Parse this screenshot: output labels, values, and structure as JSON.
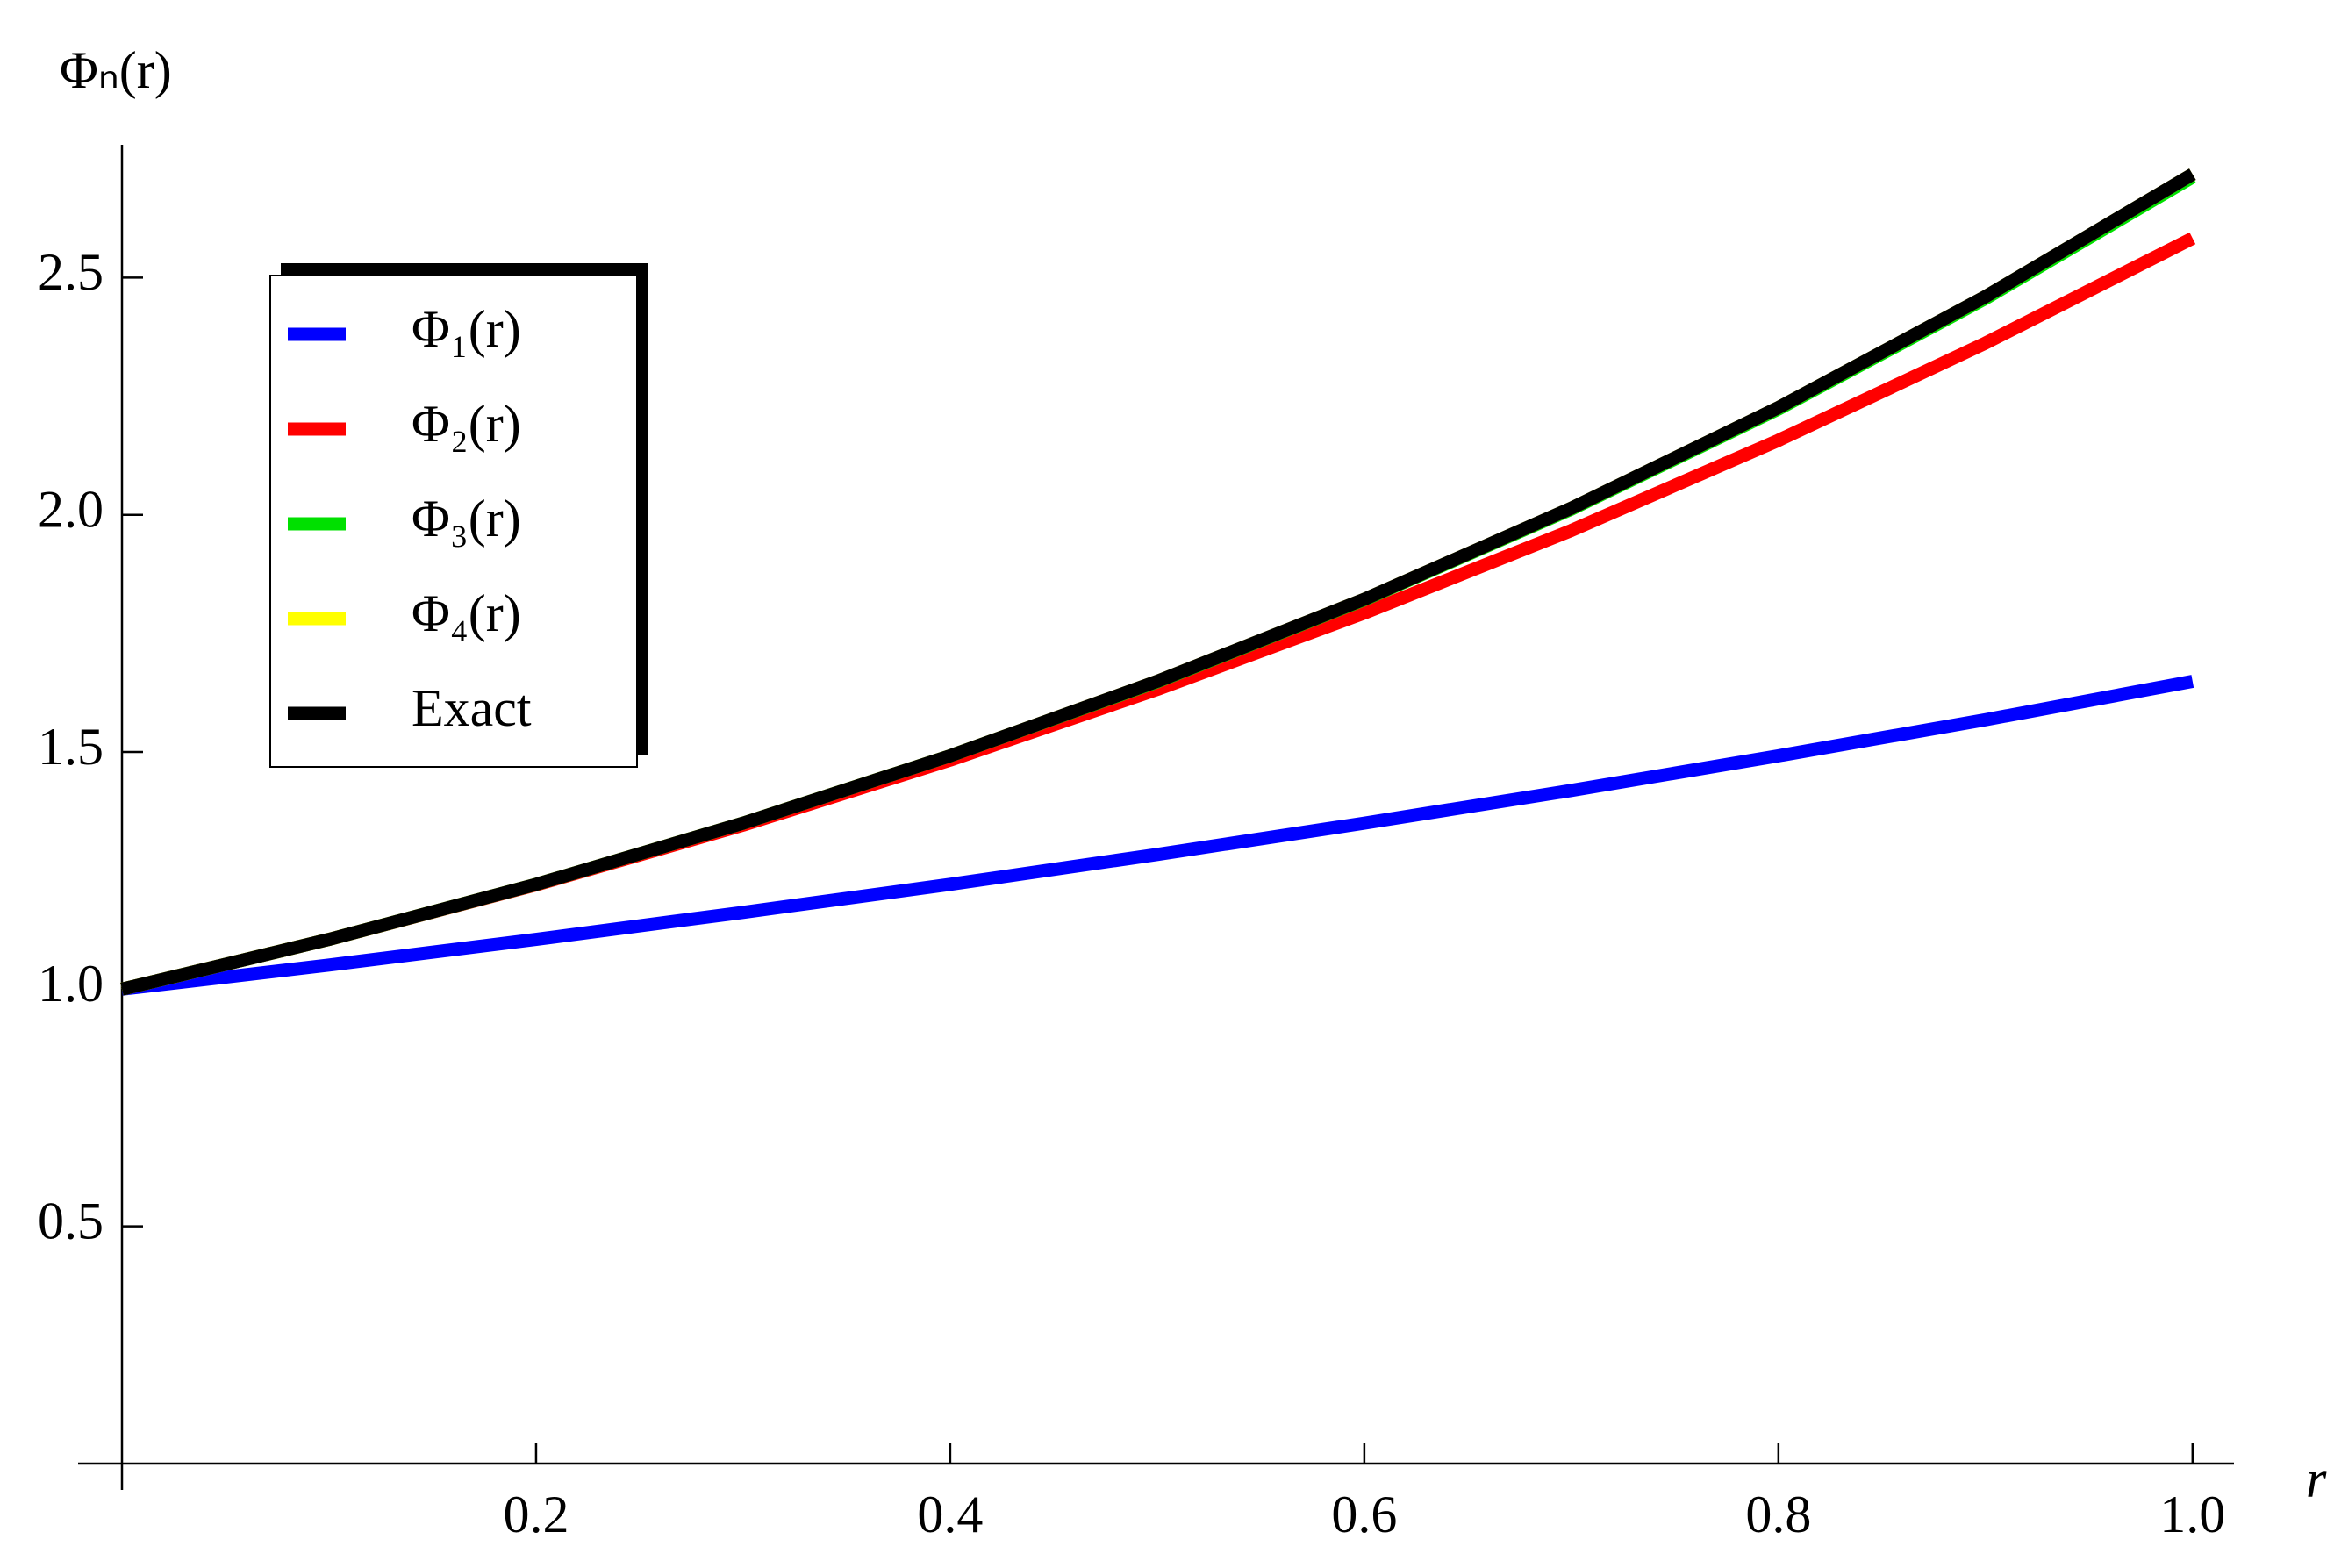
{
  "chart_data": {
    "type": "line",
    "y_label": "Φₙ(r)",
    "x_label": "r",
    "x": [
      0,
      0.1,
      0.2,
      0.3,
      0.4,
      0.5,
      0.6,
      0.7,
      0.8,
      0.9,
      1.0
    ],
    "series": [
      {
        "name": "Φ₁(r)",
        "color": "#0000ff",
        "values": [
          1,
          1.051,
          1.105,
          1.162,
          1.221,
          1.284,
          1.35,
          1.419,
          1.492,
          1.568,
          1.649
        ]
      },
      {
        "name": "Φ₂(r)",
        "color": "#ff0000",
        "values": [
          1,
          1.105,
          1.22,
          1.346,
          1.483,
          1.632,
          1.793,
          1.967,
          2.157,
          2.362,
          2.583
        ]
      },
      {
        "name": "Φ₃(r)",
        "color": "#00e000",
        "values": [
          1,
          1.105,
          1.221,
          1.35,
          1.492,
          1.648,
          1.821,
          2.012,
          2.223,
          2.456,
          2.712
        ]
      },
      {
        "name": "Φ₄(r)",
        "color": "#ffff00",
        "values": [
          1,
          1.105,
          1.221,
          1.35,
          1.492,
          1.649,
          1.822,
          2.014,
          2.226,
          2.46,
          2.718
        ]
      },
      {
        "name": "Exact",
        "color": "#000000",
        "values": [
          1,
          1.105,
          1.221,
          1.35,
          1.492,
          1.649,
          1.822,
          2.014,
          2.226,
          2.46,
          2.718
        ]
      }
    ],
    "xlim": [
      0,
      1.02
    ],
    "ylim": [
      0,
      2.78
    ],
    "xticks": [
      0.2,
      0.4,
      0.6,
      0.8,
      {
        "value": 1.0,
        "label": "1.0"
      }
    ],
    "yticks": [
      0.5,
      {
        "value": 1.0,
        "label": "1.0"
      },
      1.5,
      {
        "value": 2.0,
        "label": "2.0"
      },
      2.5
    ],
    "grid": false,
    "legend": "upper left"
  }
}
